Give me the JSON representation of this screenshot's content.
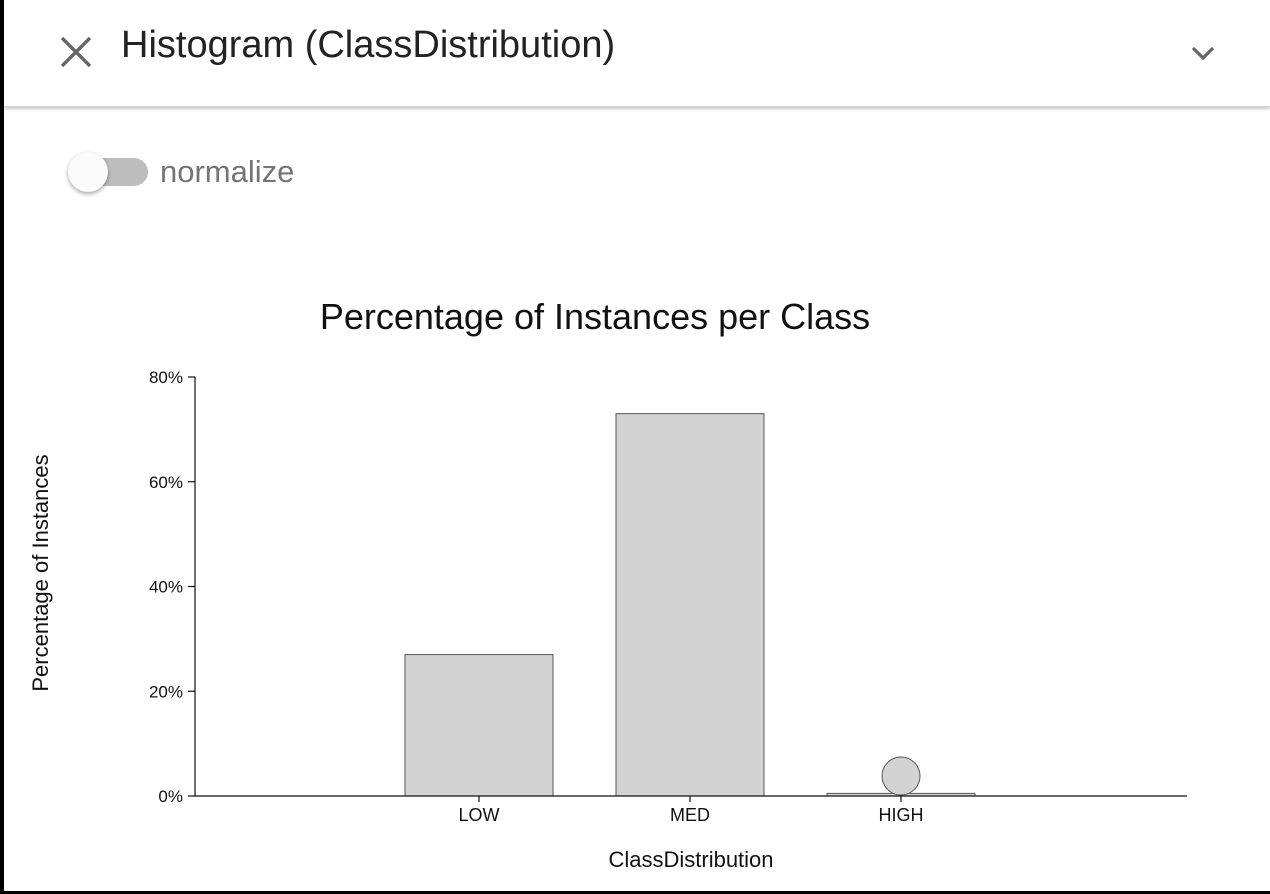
{
  "header": {
    "title": "Histogram (ClassDistribution)",
    "close_icon": "close-icon",
    "expand_icon": "chevron-down-icon"
  },
  "controls": {
    "normalize_label": "normalize",
    "normalize_on": false
  },
  "chart_data": {
    "type": "bar",
    "title": "Percentage of Instances per Class",
    "xlabel": "ClassDistribution",
    "ylabel": "Percentage of Instances",
    "categories": [
      "LOW",
      "MED",
      "HIGH"
    ],
    "values": [
      27,
      73,
      0.5
    ],
    "ylim": [
      0,
      80
    ],
    "yticks": [
      0,
      20,
      40,
      60,
      80
    ],
    "ytick_labels": [
      "0%",
      "20%",
      "40%",
      "60%",
      "80%"
    ],
    "bar_color": "#d3d3d3",
    "bar_stroke": "#555555",
    "grid": false,
    "marker_on": "HIGH"
  }
}
